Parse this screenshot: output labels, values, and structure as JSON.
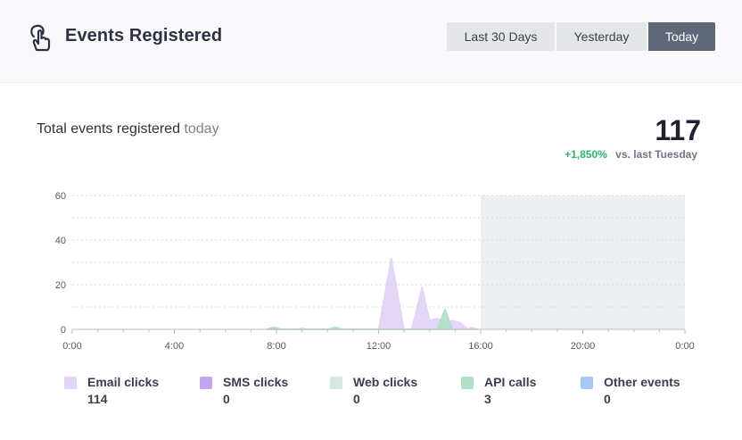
{
  "header": {
    "title": "Events Registered",
    "icon": "pointer-hand-icon"
  },
  "date_range": {
    "buttons": [
      {
        "label": "Last 30 Days",
        "active": false
      },
      {
        "label": "Yesterday",
        "active": false
      },
      {
        "label": "Today",
        "active": true
      }
    ]
  },
  "summary": {
    "label": "Total events registered",
    "period": "today",
    "total": "117",
    "change": "+1,850%",
    "comparison": "vs. last Tuesday"
  },
  "chart_data": {
    "type": "area",
    "x_ticks": [
      "0:00",
      "4:00",
      "8:00",
      "12:00",
      "16:00",
      "20:00",
      "0:00"
    ],
    "y_ticks": [
      "0",
      "20",
      "40",
      "60"
    ],
    "xlim_hours": [
      0,
      24
    ],
    "ylim": [
      0,
      60
    ],
    "grid": true,
    "future_after_hour": 16,
    "series": [
      {
        "name": "Email clicks",
        "color": "#e3d4f7",
        "points": [
          [
            7.7,
            0
          ],
          [
            7.9,
            0.5
          ],
          [
            8.1,
            0
          ],
          [
            8.8,
            0
          ],
          [
            9.0,
            0.5
          ],
          [
            9.2,
            0
          ],
          [
            10.0,
            0
          ],
          [
            10.3,
            0.5
          ],
          [
            10.6,
            0
          ],
          [
            12.0,
            0
          ],
          [
            12.5,
            32
          ],
          [
            13.0,
            0
          ],
          [
            13.3,
            0
          ],
          [
            13.7,
            19
          ],
          [
            14.0,
            4
          ],
          [
            14.3,
            5
          ],
          [
            14.6,
            3
          ],
          [
            14.9,
            4
          ],
          [
            15.2,
            3
          ],
          [
            15.5,
            0
          ],
          [
            15.6,
            1
          ],
          [
            15.9,
            0
          ]
        ]
      },
      {
        "name": "SMS clicks",
        "color": "#c4a4ee",
        "points": []
      },
      {
        "name": "Web clicks",
        "color": "#d3e8de",
        "points": []
      },
      {
        "name": "API calls",
        "color": "#b2dfca",
        "points": [
          [
            7.6,
            0
          ],
          [
            7.9,
            1
          ],
          [
            8.2,
            0
          ],
          [
            10.0,
            0
          ],
          [
            10.3,
            1
          ],
          [
            10.6,
            0
          ],
          [
            14.3,
            0
          ],
          [
            14.6,
            9
          ],
          [
            14.9,
            0
          ]
        ]
      },
      {
        "name": "Other events",
        "color": "#a7c8f3",
        "points": []
      }
    ]
  },
  "legend": {
    "items": [
      {
        "label": "Email clicks",
        "count": "114",
        "color": "#e3d4f7"
      },
      {
        "label": "SMS clicks",
        "count": "0",
        "color": "#c4a4ee"
      },
      {
        "label": "Web clicks",
        "count": "0",
        "color": "#d3e8de"
      },
      {
        "label": "API calls",
        "count": "3",
        "color": "#b2dfca"
      },
      {
        "label": "Other events",
        "count": "0",
        "color": "#a7c8f3"
      }
    ]
  }
}
